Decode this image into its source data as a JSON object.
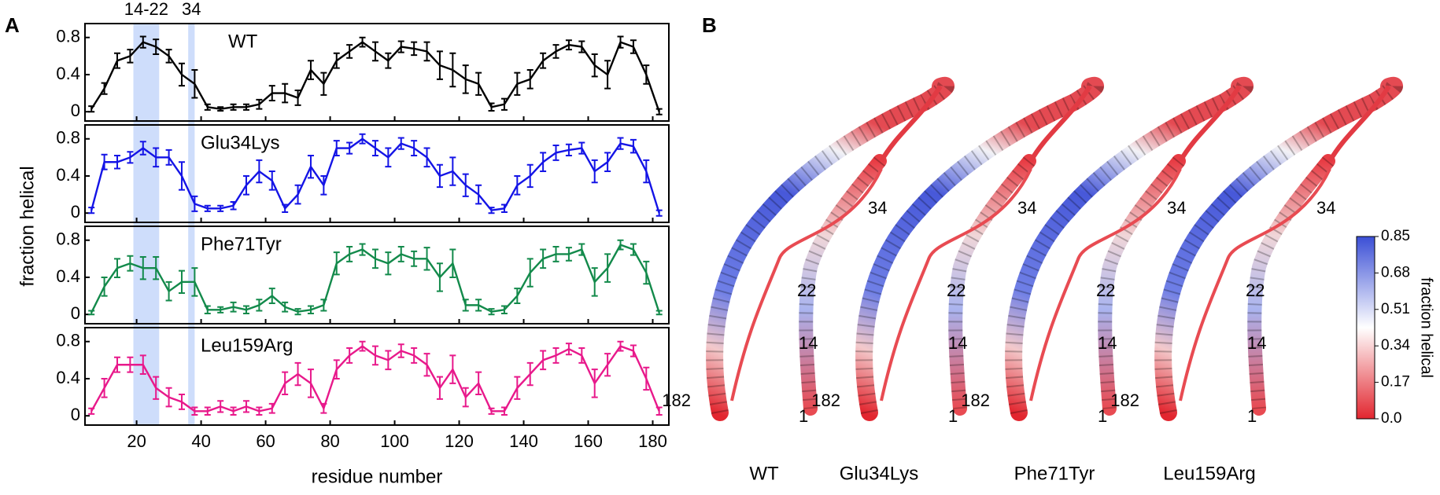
{
  "figure_labels": [
    "A",
    "B"
  ],
  "chart_data": {
    "type": "line",
    "xlabel": "residue number",
    "ylabel": "fraction helical",
    "x": [
      6,
      10,
      14,
      18,
      22,
      26,
      30,
      34,
      38,
      42,
      46,
      50,
      54,
      58,
      62,
      66,
      70,
      74,
      78,
      82,
      86,
      90,
      94,
      98,
      102,
      106,
      110,
      114,
      118,
      122,
      126,
      130,
      134,
      138,
      142,
      146,
      150,
      154,
      158,
      162,
      166,
      170,
      174,
      178,
      182
    ],
    "xlim": [
      4,
      185
    ],
    "xticks": [
      20,
      40,
      60,
      80,
      100,
      120,
      140,
      160,
      180
    ],
    "ylim": [
      -0.1,
      0.95
    ],
    "yticks": [
      0,
      0.4,
      0.8
    ],
    "highlights": [
      {
        "label": "14-22",
        "range": [
          19,
          27
        ]
      },
      {
        "label": "34",
        "range": [
          36,
          38
        ]
      }
    ],
    "highlight_color": "#c6d7fa",
    "series": [
      {
        "name": "WT",
        "color": "#000000",
        "values": [
          0.03,
          0.25,
          0.55,
          0.6,
          0.75,
          0.7,
          0.6,
          0.4,
          0.3,
          0.05,
          0.03,
          0.05,
          0.05,
          0.08,
          0.2,
          0.2,
          0.15,
          0.45,
          0.3,
          0.55,
          0.65,
          0.75,
          0.65,
          0.55,
          0.7,
          0.68,
          0.65,
          0.5,
          0.45,
          0.35,
          0.3,
          0.05,
          0.08,
          0.3,
          0.35,
          0.55,
          0.65,
          0.72,
          0.7,
          0.5,
          0.4,
          0.75,
          0.7,
          0.4,
          0.0
        ],
        "errors": [
          0.03,
          0.06,
          0.08,
          0.07,
          0.06,
          0.08,
          0.07,
          0.12,
          0.15,
          0.03,
          0.02,
          0.03,
          0.03,
          0.05,
          0.08,
          0.1,
          0.08,
          0.1,
          0.12,
          0.08,
          0.07,
          0.05,
          0.1,
          0.08,
          0.06,
          0.07,
          0.1,
          0.15,
          0.18,
          0.15,
          0.12,
          0.04,
          0.06,
          0.12,
          0.1,
          0.08,
          0.07,
          0.05,
          0.06,
          0.12,
          0.15,
          0.06,
          0.07,
          0.1,
          0.03
        ]
      },
      {
        "name": "Glu34Lys",
        "color": "#1414e6",
        "values": [
          0.03,
          0.55,
          0.55,
          0.6,
          0.7,
          0.6,
          0.6,
          0.4,
          0.1,
          0.05,
          0.05,
          0.08,
          0.3,
          0.45,
          0.35,
          0.05,
          0.2,
          0.5,
          0.3,
          0.7,
          0.7,
          0.8,
          0.7,
          0.6,
          0.75,
          0.7,
          0.6,
          0.4,
          0.45,
          0.3,
          0.2,
          0.03,
          0.05,
          0.3,
          0.4,
          0.55,
          0.65,
          0.68,
          0.7,
          0.45,
          0.55,
          0.75,
          0.72,
          0.45,
          0.0
        ],
        "errors": [
          0.03,
          0.08,
          0.07,
          0.06,
          0.07,
          0.1,
          0.08,
          0.15,
          0.08,
          0.03,
          0.03,
          0.04,
          0.1,
          0.12,
          0.1,
          0.04,
          0.1,
          0.12,
          0.1,
          0.08,
          0.06,
          0.05,
          0.08,
          0.1,
          0.06,
          0.08,
          0.1,
          0.12,
          0.15,
          0.12,
          0.1,
          0.03,
          0.04,
          0.1,
          0.12,
          0.1,
          0.08,
          0.06,
          0.06,
          0.12,
          0.1,
          0.06,
          0.07,
          0.12,
          0.03
        ]
      },
      {
        "name": "Phe71Tyr",
        "color": "#138a4b",
        "values": [
          0.02,
          0.3,
          0.5,
          0.55,
          0.5,
          0.5,
          0.25,
          0.35,
          0.35,
          0.05,
          0.05,
          0.08,
          0.05,
          0.1,
          0.2,
          0.08,
          0.03,
          0.05,
          0.1,
          0.55,
          0.65,
          0.7,
          0.6,
          0.55,
          0.65,
          0.6,
          0.6,
          0.4,
          0.55,
          0.1,
          0.1,
          0.03,
          0.05,
          0.2,
          0.45,
          0.6,
          0.65,
          0.65,
          0.7,
          0.35,
          0.5,
          0.75,
          0.7,
          0.45,
          0.02
        ],
        "errors": [
          0.02,
          0.1,
          0.1,
          0.08,
          0.12,
          0.12,
          0.1,
          0.12,
          0.15,
          0.04,
          0.03,
          0.05,
          0.04,
          0.06,
          0.08,
          0.05,
          0.03,
          0.04,
          0.06,
          0.12,
          0.08,
          0.06,
          0.1,
          0.12,
          0.08,
          0.08,
          0.12,
          0.15,
          0.15,
          0.06,
          0.06,
          0.03,
          0.04,
          0.08,
          0.15,
          0.1,
          0.08,
          0.07,
          0.06,
          0.15,
          0.15,
          0.05,
          0.06,
          0.12,
          0.02
        ]
      },
      {
        "name": "Leu159Arg",
        "color": "#e8198b",
        "values": [
          0.05,
          0.3,
          0.55,
          0.55,
          0.55,
          0.3,
          0.2,
          0.15,
          0.05,
          0.05,
          0.1,
          0.05,
          0.1,
          0.05,
          0.08,
          0.35,
          0.45,
          0.35,
          0.08,
          0.5,
          0.65,
          0.75,
          0.65,
          0.6,
          0.7,
          0.65,
          0.55,
          0.3,
          0.5,
          0.2,
          0.35,
          0.05,
          0.05,
          0.3,
          0.45,
          0.6,
          0.65,
          0.72,
          0.65,
          0.35,
          0.55,
          0.75,
          0.7,
          0.4,
          0.05
        ],
        "errors": [
          0.03,
          0.1,
          0.08,
          0.08,
          0.1,
          0.12,
          0.1,
          0.08,
          0.04,
          0.04,
          0.06,
          0.04,
          0.06,
          0.04,
          0.05,
          0.12,
          0.12,
          0.15,
          0.05,
          0.1,
          0.08,
          0.05,
          0.1,
          0.1,
          0.07,
          0.08,
          0.12,
          0.12,
          0.15,
          0.1,
          0.12,
          0.03,
          0.04,
          0.12,
          0.12,
          0.1,
          0.08,
          0.06,
          0.08,
          0.15,
          0.12,
          0.05,
          0.06,
          0.12,
          0.04
        ]
      }
    ]
  },
  "structures": {
    "residue_labels": [
      "34",
      "22",
      "14",
      "1",
      "182"
    ],
    "colorbar": {
      "label": "fraction helical",
      "lim": [
        0,
        0.85
      ],
      "ticks": [
        0.85,
        0.68,
        0.51,
        0.34,
        0.17,
        {
          "value": 0,
          "label": "0.0"
        }
      ],
      "colors": [
        "#e2262f",
        "#ffffff",
        "#3b4fd6"
      ]
    }
  }
}
